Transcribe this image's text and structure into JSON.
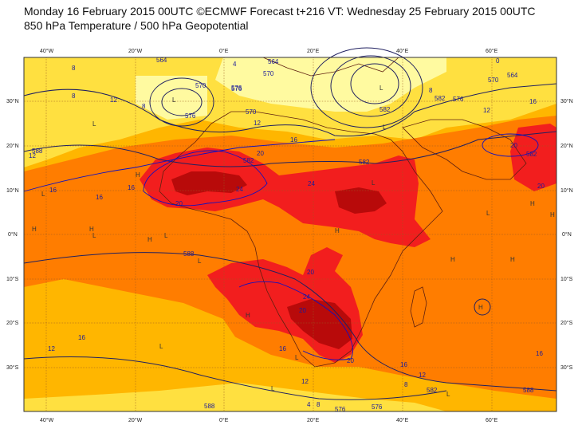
{
  "title": {
    "line1": "Monday 16 February 2015 00UTC ©ECMWF Forecast t+216 VT: Wednesday 25 February 2015 00UTC",
    "line2": "850 hPa Temperature / 500 hPa Geopotential"
  },
  "axes": {
    "top_ticks": [
      "40°W",
      "20°W",
      "0°E",
      "20°E",
      "40°E",
      "60°E"
    ],
    "bottom_ticks": [
      "40°W",
      "20°W",
      "0°E",
      "20°E",
      "40°E",
      "60°E"
    ],
    "left_ticks": [
      "30°N",
      "20°N",
      "10°N",
      "0°N",
      "10°S",
      "20°S",
      "30°S"
    ],
    "right_ticks": [
      "30°N",
      "20°N",
      "10°N",
      "0°N",
      "10°S",
      "20°S",
      "30°S"
    ]
  },
  "colors": {
    "temp_cold": "#fffaa0",
    "temp_cool": "#ffe040",
    "temp_mild": "#ffb600",
    "temp_warm": "#ff7d00",
    "temp_hot": "#f21e1e",
    "temp_very_hot": "#b80a0a",
    "geopotential_line": "#202060",
    "isotherm_line": "#1010c0",
    "coast_line": "#602010"
  },
  "contour_labels": {
    "geopotential": [
      "564",
      "570",
      "576",
      "564",
      "570",
      "576",
      "582",
      "582",
      "564",
      "570",
      "576",
      "576",
      "582",
      "582",
      "588",
      "588",
      "588",
      "582",
      "576",
      "576",
      "570",
      "588",
      "582"
    ],
    "temperature": [
      "8",
      "4",
      "8",
      "12",
      "8",
      "12",
      "8",
      "12",
      "16",
      "12",
      "16",
      "16",
      "20",
      "20",
      "24",
      "24",
      "20",
      "16",
      "20",
      "20",
      "24",
      "20",
      "16",
      "12",
      "8",
      "4",
      "8",
      "12",
      "16",
      "20",
      "16",
      "16",
      "12",
      "16",
      "0"
    ]
  },
  "pressure_marks": {
    "highs": [
      "H",
      "H",
      "H",
      "H",
      "H",
      "H",
      "H",
      "H",
      "H",
      "H",
      "H"
    ],
    "lows": [
      "L",
      "L",
      "L",
      "L",
      "L",
      "L",
      "L",
      "L",
      "L",
      "L",
      "L",
      "L",
      "L",
      "L"
    ]
  }
}
